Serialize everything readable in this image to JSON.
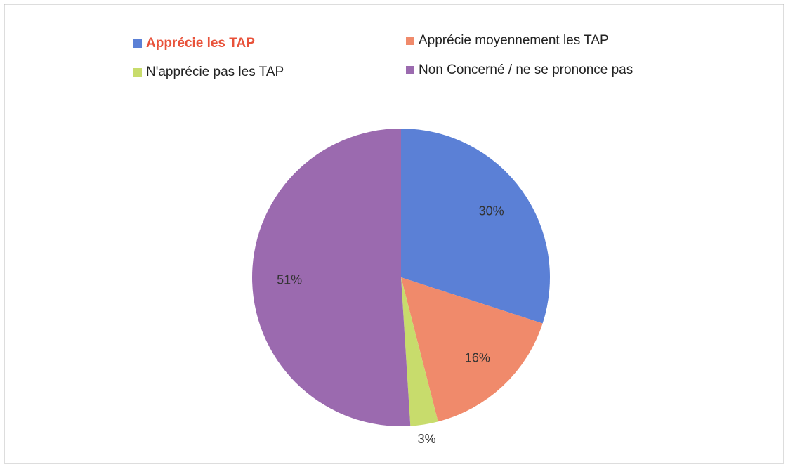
{
  "chart_data": {
    "type": "pie",
    "categories": [
      "Apprécie les TAP",
      "Apprécie moyennement les TAP",
      "N'apprécie pas les TAP",
      "Non Concerné / ne se prononce pas"
    ],
    "values": [
      30,
      16,
      3,
      51
    ],
    "value_labels": [
      "30%",
      "16%",
      "3%",
      "51%"
    ],
    "colors": [
      "#5b80d6",
      "#f08a6b",
      "#c8dc6c",
      "#9b6aaf"
    ]
  }
}
